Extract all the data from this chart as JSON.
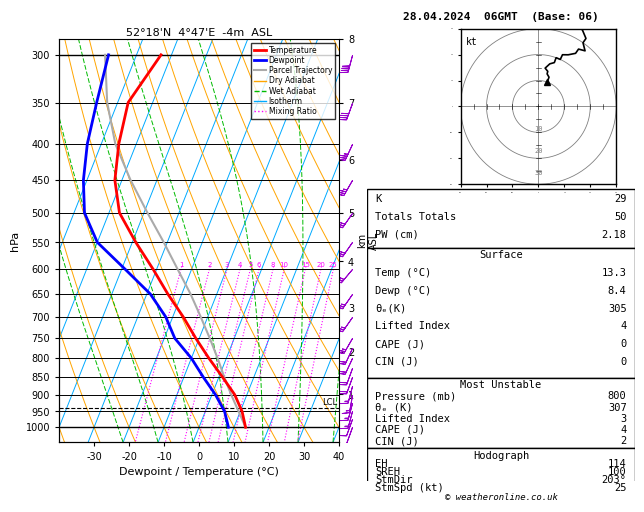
{
  "title_left": "52°18'N  4°47'E  -4m  ASL",
  "title_right": "28.04.2024  06GMT  (Base: 06)",
  "xlabel": "Dewpoint / Temperature (°C)",
  "ylabel_left": "hPa",
  "color_isotherm": "#00aaff",
  "color_dry_adiabat": "#ffa500",
  "color_wet_adiabat": "#00bb00",
  "color_mixing_ratio": "#ff00ff",
  "color_temp": "#ff0000",
  "color_dewp": "#0000ff",
  "color_parcel": "#aaaaaa",
  "color_wind": "#9900cc",
  "pressure_ticks": [
    300,
    350,
    400,
    450,
    500,
    550,
    600,
    650,
    700,
    750,
    800,
    850,
    900,
    950,
    1000
  ],
  "km_ticks": [
    1,
    2,
    3,
    4,
    5,
    6,
    7,
    8
  ],
  "km_pressures": [
    899,
    784,
    680,
    585,
    500,
    421,
    350,
    285
  ],
  "lcl_pressure": 940,
  "temp_profile_t": [
    13.3,
    10.5,
    6.5,
    1.0,
    -5.0,
    -11.0,
    -17.0,
    -24.0,
    -31.0,
    -39.0,
    -47.0,
    -52.0,
    -55.0,
    -57.0,
    -53.0
  ],
  "temp_profile_p": [
    1000,
    950,
    900,
    850,
    800,
    750,
    700,
    650,
    600,
    550,
    500,
    450,
    400,
    350,
    300
  ],
  "dewp_profile_t": [
    8.4,
    5.5,
    1.0,
    -4.5,
    -10.0,
    -17.0,
    -22.0,
    -29.0,
    -39.0,
    -50.0,
    -57.0,
    -61.0,
    -64.0,
    -66.0,
    -68.0
  ],
  "dewp_profile_p": [
    1000,
    950,
    900,
    850,
    800,
    750,
    700,
    650,
    600,
    550,
    500,
    450,
    400,
    350,
    300
  ],
  "parcel_profile_t": [
    13.3,
    9.5,
    5.5,
    1.5,
    -2.5,
    -7.0,
    -12.0,
    -17.5,
    -24.0,
    -31.0,
    -39.0,
    -47.5,
    -56.0,
    -63.0,
    -69.0
  ],
  "parcel_profile_p": [
    1000,
    950,
    900,
    850,
    800,
    750,
    700,
    650,
    600,
    550,
    500,
    450,
    400,
    350,
    300
  ],
  "wind_levels_p": [
    1000,
    975,
    950,
    925,
    900,
    875,
    850,
    825,
    800,
    775,
    750,
    700,
    650,
    600,
    550,
    500,
    450,
    400,
    350,
    300
  ],
  "wind_speeds": [
    10,
    12,
    13,
    14,
    15,
    17,
    18,
    20,
    20,
    22,
    23,
    25,
    27,
    28,
    30,
    32,
    34,
    35,
    38,
    42
  ],
  "wind_dirs": [
    200,
    200,
    195,
    195,
    190,
    195,
    200,
    200,
    205,
    205,
    210,
    215,
    215,
    220,
    215,
    215,
    210,
    205,
    200,
    195
  ],
  "mixing_ratios": [
    1,
    2,
    3,
    4,
    5,
    6,
    8,
    10,
    15,
    20,
    25
  ],
  "stats": {
    "K": 29,
    "Totals_Totals": 50,
    "PW_cm": 2.18,
    "Surf_Temp": 13.3,
    "Surf_Dewp": 8.4,
    "Surf_Theta_e": 305,
    "Surf_LI": 4,
    "Surf_CAPE": 0,
    "Surf_CIN": 0,
    "MU_Pressure": 800,
    "MU_Theta_e": 307,
    "MU_LI": 3,
    "MU_CAPE": 4,
    "MU_CIN": 2,
    "EH": 114,
    "SREH": 100,
    "StmDir": 203,
    "StmSpd": 25
  }
}
